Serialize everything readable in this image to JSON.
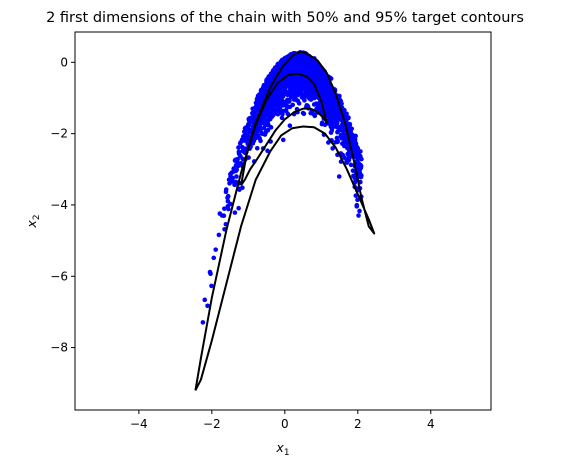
{
  "chart_data": {
    "type": "scatter",
    "title": "2 first dimensions of the chain with 50% and 95% target contours",
    "xlabel": {
      "base": "x",
      "sub": "1"
    },
    "ylabel": {
      "base": "x",
      "sub": "2"
    },
    "xlim": [
      -5.75,
      5.65
    ],
    "ylim": [
      -9.75,
      0.85
    ],
    "xticks": [
      -4,
      -2,
      0,
      2,
      4
    ],
    "xtick_labels": [
      "−4",
      "−2",
      "0",
      "2",
      "4"
    ],
    "yticks": [
      -8,
      -6,
      -4,
      -2,
      0
    ],
    "ytick_labels": [
      "−8",
      "−6",
      "−4",
      "−2",
      "0"
    ],
    "grid": false,
    "series": [
      {
        "type": "scatter",
        "color": "#0000ff",
        "n_points": 2600,
        "distribution": "banana: x1 ~ N(0.4, 0.78), x2 ≈ 0.28 − 0.95·(x1 − 0.4)² − |noise 0.6|"
      },
      {
        "type": "contour",
        "level": "95%",
        "color": "#000000",
        "x": [
          -2.45,
          -2.3,
          -2.0,
          -1.6,
          -1.2,
          -0.8,
          -0.4,
          -0.05,
          0.25,
          0.45,
          0.65,
          0.9,
          1.15,
          1.4,
          1.65,
          1.9,
          2.1,
          2.3,
          2.45,
          2.3,
          2.0,
          1.7,
          1.4,
          1.1,
          0.8,
          0.5,
          0.2,
          -0.1,
          -0.4,
          -0.8,
          -1.2,
          -1.6,
          -2.0,
          -2.3,
          -2.45
        ],
        "y": [
          -9.2,
          -8.3,
          -6.6,
          -4.7,
          -3.1,
          -1.7,
          -0.7,
          -0.1,
          0.22,
          0.3,
          0.22,
          0.05,
          -0.3,
          -0.9,
          -1.7,
          -2.8,
          -3.8,
          -4.6,
          -4.8,
          -4.4,
          -3.7,
          -3.0,
          -2.4,
          -2.0,
          -1.82,
          -1.8,
          -1.85,
          -2.05,
          -2.5,
          -3.3,
          -4.6,
          -6.2,
          -7.8,
          -8.9,
          -9.2
        ]
      },
      {
        "type": "contour",
        "level": "50%",
        "color": "#000000",
        "x": [
          -1.2,
          -1.05,
          -0.8,
          -0.5,
          -0.2,
          0.1,
          0.35,
          0.6,
          0.8,
          1.0,
          1.15,
          1.05,
          0.9,
          0.7,
          0.5,
          0.25,
          0.0,
          -0.25,
          -0.5,
          -0.75,
          -0.95,
          -1.1,
          -1.2
        ],
        "y": [
          -3.45,
          -2.6,
          -1.75,
          -1.05,
          -0.58,
          -0.35,
          -0.32,
          -0.4,
          -0.6,
          -1.1,
          -1.7,
          -1.55,
          -1.4,
          -1.3,
          -1.3,
          -1.4,
          -1.6,
          -1.9,
          -2.3,
          -2.7,
          -3.0,
          -3.3,
          -3.45
        ]
      }
    ]
  }
}
